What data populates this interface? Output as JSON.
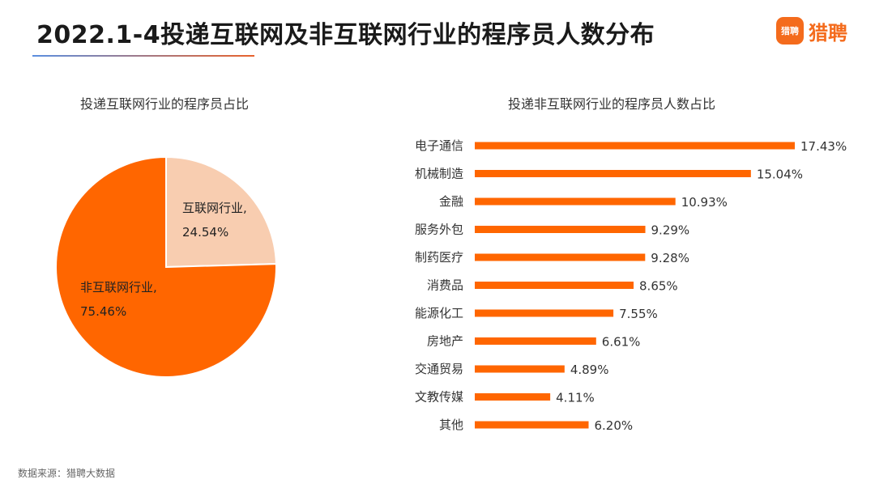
{
  "header": {
    "title": "2022.1-4投递互联网及非互联网行业的程序员人数分布",
    "logo_badge": "猎聘",
    "logo_text": "猎聘"
  },
  "colors": {
    "accent": "#ff6600",
    "pie_light": "#f8cdb0",
    "pie_dark": "#ff6600",
    "bar": "#ff6600"
  },
  "chart_data": [
    {
      "type": "pie",
      "title": "投递互联网行业的程序员占比",
      "slices": [
        {
          "label": "互联网行业,",
          "value": 24.54,
          "value_label": "24.54%"
        },
        {
          "label": "非互联网行业,",
          "value": 75.46,
          "value_label": "75.46%"
        }
      ]
    },
    {
      "type": "bar",
      "orientation": "horizontal",
      "title": "投递非互联网行业的程序员人数占比",
      "categories": [
        "电子通信",
        "机械制造",
        "金融",
        "服务外包",
        "制药医疗",
        "消费品",
        "能源化工",
        "房地产",
        "交通贸易",
        "文教传媒",
        "其他"
      ],
      "values": [
        17.43,
        15.04,
        10.93,
        9.29,
        9.28,
        8.65,
        7.55,
        6.61,
        4.89,
        4.11,
        6.2
      ],
      "value_labels": [
        "17.43%",
        "15.04%",
        "10.93%",
        "9.29%",
        "9.28%",
        "8.65%",
        "7.55%",
        "6.61%",
        "4.89%",
        "4.11%",
        "6.20%"
      ],
      "xlim": [
        0,
        17.43
      ]
    }
  ],
  "footer": {
    "source": "数据来源：猎聘大数据"
  }
}
